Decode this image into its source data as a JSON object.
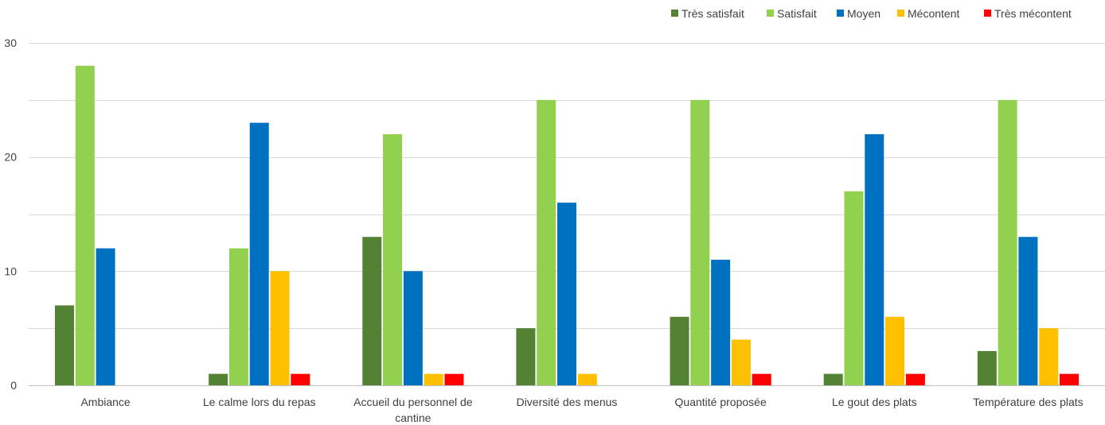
{
  "chart_data": {
    "type": "bar",
    "title": "",
    "xlabel": "",
    "ylabel": "",
    "ylim": [
      0,
      30
    ],
    "yticks": [
      0,
      10,
      20,
      30
    ],
    "grid": true,
    "legend_position": "top-right",
    "categories": [
      [
        "Ambiance"
      ],
      [
        "Le calme lors du repas"
      ],
      [
        "Accueil du personnel de",
        "cantine"
      ],
      [
        "Diversité des menus"
      ],
      [
        "Quantité proposée"
      ],
      [
        "Le gout des plats"
      ],
      [
        "Température des plats"
      ]
    ],
    "series": [
      {
        "name": "Très satisfait",
        "color": "#548235",
        "values": [
          7,
          1,
          13,
          5,
          6,
          1,
          3
        ]
      },
      {
        "name": "Satisfait",
        "color": "#92D050",
        "values": [
          28,
          12,
          22,
          25,
          25,
          17,
          25
        ]
      },
      {
        "name": "Moyen",
        "color": "#0070C0",
        "values": [
          12,
          23,
          10,
          16,
          11,
          22,
          13
        ]
      },
      {
        "name": "Mécontent",
        "color": "#FFC000",
        "values": [
          0,
          10,
          1,
          1,
          4,
          6,
          5
        ]
      },
      {
        "name": "Très mécontent",
        "color": "#FF0000",
        "values": [
          0,
          1,
          1,
          0,
          1,
          1,
          1
        ]
      }
    ]
  }
}
